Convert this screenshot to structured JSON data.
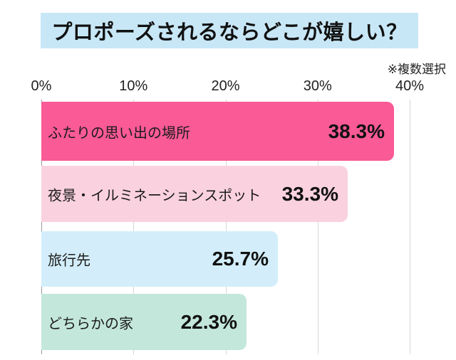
{
  "title": "プロポーズされるならどこが嬉しい？",
  "note": "※複数選択",
  "colors": {
    "title_bg": "#c8e7f6",
    "grid_line": "#d6d6d6",
    "zero_line": "#9a9a9a",
    "text": "#111111"
  },
  "chart_data": {
    "type": "bar",
    "orientation": "horizontal",
    "title": "プロポーズされるならどこが嬉しい？",
    "annotation": "※複数選択",
    "categories": [
      "ふたりの思い出の場所",
      "夜景・イルミネーションスポット",
      "旅行先",
      "どちらかの家"
    ],
    "values": [
      38.3,
      33.3,
      25.7,
      22.3
    ],
    "value_labels": [
      "38.3%",
      "33.3%",
      "25.7%",
      "22.3%"
    ],
    "bar_colors": [
      "#fa5a96",
      "#fad1df",
      "#d3eefa",
      "#c3e7db"
    ],
    "x_ticks": [
      "0%",
      "10%",
      "20%",
      "30%",
      "40%"
    ],
    "xlim": [
      0,
      40
    ],
    "grid": true,
    "legend": false
  }
}
